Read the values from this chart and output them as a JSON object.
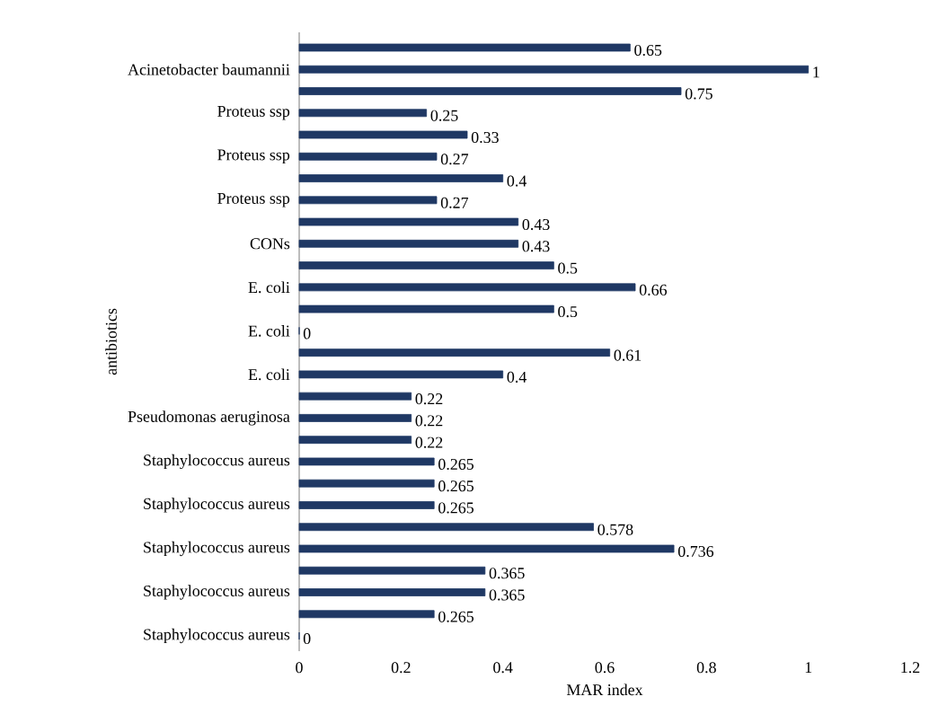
{
  "chart_data": {
    "type": "bar",
    "orientation": "horizontal",
    "xlabel": "MAR index",
    "ylabel": "antibiotics",
    "categories": [
      null,
      "Acinetobacter baumannii",
      null,
      "Proteus ssp",
      null,
      "Proteus ssp",
      null,
      "Proteus ssp",
      null,
      "CONs",
      null,
      "E. coli",
      null,
      "E. coli",
      null,
      "E. coli",
      null,
      "Pseudomonas aeruginosa",
      null,
      "Staphylococcus aureus",
      null,
      "Staphylococcus aureus",
      null,
      "Staphylococcus aureus",
      null,
      "Staphylococcus aureus",
      null,
      "Staphylococcus aureus"
    ],
    "values": [
      0.65,
      1,
      0.75,
      0.25,
      0.33,
      0.27,
      0.4,
      0.27,
      0.43,
      0.43,
      0.5,
      0.66,
      0.5,
      0,
      0.61,
      0.4,
      0.22,
      0.22,
      0.22,
      0.265,
      0.265,
      0.265,
      0.578,
      0.736,
      0.365,
      0.365,
      0.265,
      0
    ],
    "color": "#1f3864",
    "data_labels": true,
    "xlim": [
      0,
      1.2
    ],
    "xticks": [
      0,
      0.2,
      0.4,
      0.6,
      0.8,
      1,
      1.2
    ]
  }
}
